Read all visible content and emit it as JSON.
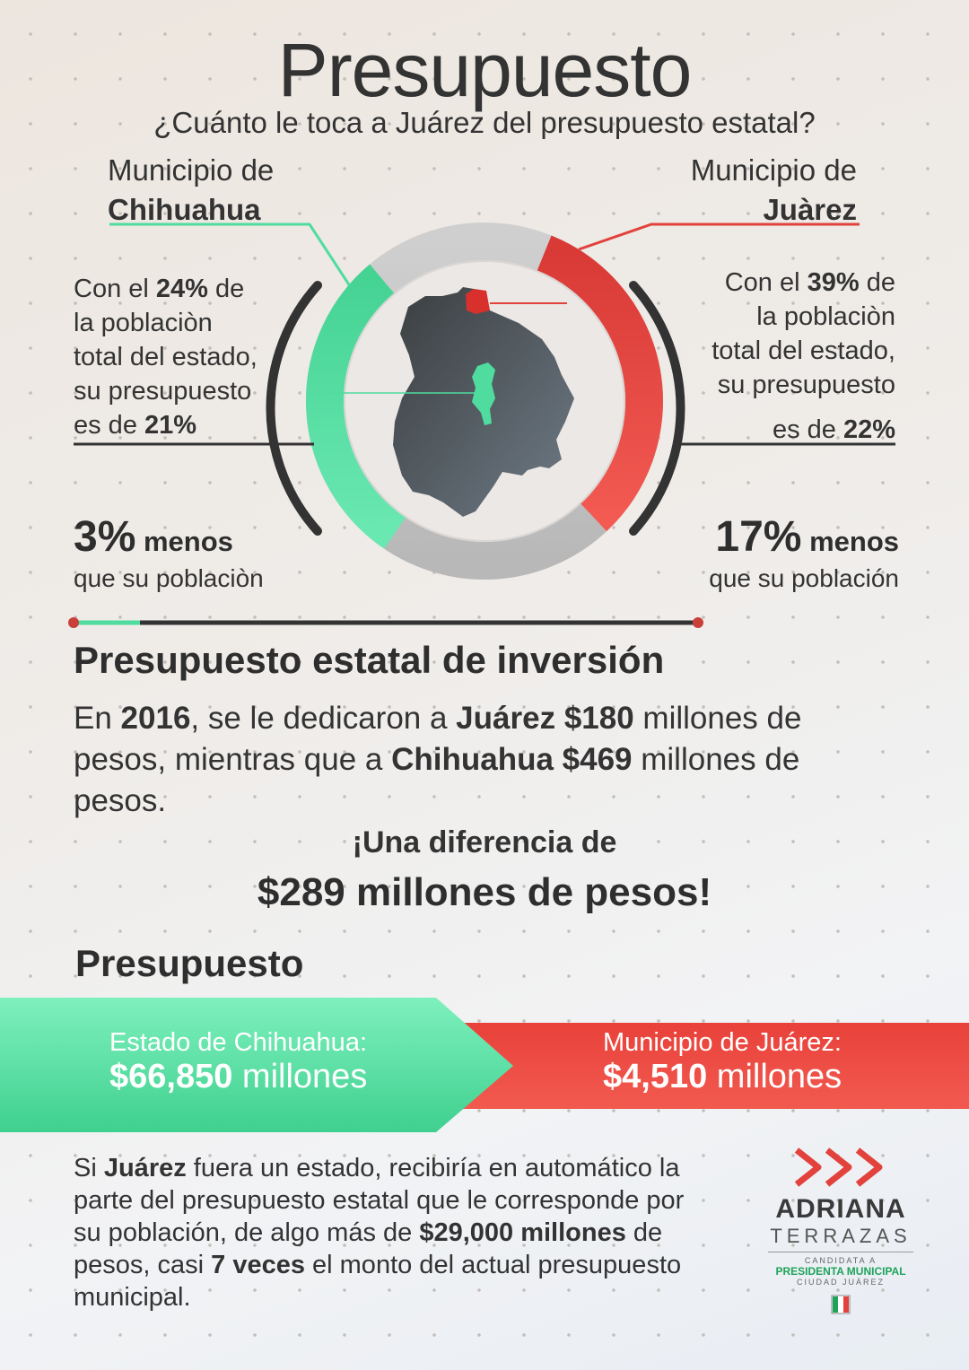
{
  "header": {
    "title": "Presupuesto",
    "subtitle": "¿Cuánto le toca a Juárez del presupuesto estatal?"
  },
  "left": {
    "label": "Municipio de",
    "name": "Chihuahua",
    "pop_line1_a": "Con el ",
    "pop_line1_pct": "24%",
    "pop_line1_b": " de",
    "pop_line2": "la poblaciòn",
    "pop_line3": "total del estado,",
    "pop_line4": "su presupuesto",
    "pop_line5_a": "es de ",
    "pop_line5_pct": "21%",
    "less_value": "3%",
    "less_unit": " menos",
    "less_sub": "que su poblaciòn"
  },
  "right": {
    "label": "Municipio de",
    "name": "Juàrez",
    "pop_line1_a": "Con el ",
    "pop_line1_pct": "39%",
    "pop_line1_b": " de",
    "pop_line2": "la poblaciòn",
    "pop_line3": "total del estado,",
    "pop_line4": "su presupuesto",
    "pop_line5_a": "es de ",
    "pop_line5_pct": "22%",
    "less_value": "17%",
    "less_unit": " menos",
    "less_sub": "que su población"
  },
  "ring": {
    "green_share": 0.21,
    "red_share": 0.22
  },
  "section_investment": {
    "heading": "Presupuesto estatal de inversión",
    "p1": "En ",
    "year": "2016",
    "p2": ", se le dedicaron a ",
    "city1": "Juárez",
    "amount1": "$180",
    "p3": " millones de",
    "p4": "pesos, mientras que a ",
    "city2": "Chihuahua",
    "amount2": "$469",
    "p5": " millones de",
    "p6": "pesos.",
    "diff_line1": "¡Una diferencia de",
    "diff_line2": "$289 millones de pesos!"
  },
  "section_budget": {
    "heading": "Presupuesto",
    "state_label": "Estado de Chihuahua:",
    "state_amount": "$66,850",
    "state_unit": " millones",
    "muni_label": "Municipio de Juárez:",
    "muni_amount": "$4,510",
    "muni_unit": " millones"
  },
  "bottom": {
    "t1": "Si ",
    "b1": "Juárez",
    "t2": " fuera un estado, recibiría en automático la",
    "t3": "parte del presupuesto estatal que le corresponde por",
    "t4": "su población, de algo más de ",
    "b2": "$29,000 millones",
    "t5": " de",
    "t6": "pesos, casi ",
    "b3": "7 veces",
    "t7": " el monto del actual presupuesto",
    "t8": "municipal."
  },
  "logo": {
    "name": "ADRIANA",
    "surname": "TERRAZAS",
    "role": "CANDIDATA A",
    "office": "PRESIDENTA MUNICIPAL",
    "city": "CIUDAD JUÁREZ",
    "party": "PRI"
  },
  "colors": {
    "green": "#4fdc9e",
    "red": "#e2413c",
    "dark": "#333333"
  }
}
